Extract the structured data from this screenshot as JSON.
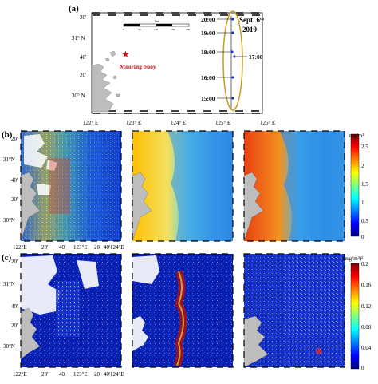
{
  "panel_a": {
    "label": "(a)",
    "lat_labels": [
      "20'",
      "31° N",
      "40'",
      "20'",
      "30° N"
    ],
    "lon_labels": [
      "122° E",
      "123° E",
      "124° E",
      "125° E",
      "126° E"
    ],
    "scale_label": "km",
    "scale_ticks": [
      "0",
      "50",
      "100",
      "150",
      "200"
    ],
    "buoy_label": "Mooring buoy",
    "date_line1": "Sept. 6",
    "date_sup": "th",
    "date_line2": "2019",
    "times_left": [
      "20:00",
      "19:00",
      "18:00",
      "16:00",
      "15:00"
    ],
    "time_right": "17:00"
  },
  "panel_b": {
    "label": "(b)",
    "lat_labels": [
      "20'",
      "31°N",
      "40'",
      "20'",
      "30°N"
    ],
    "lon_labels": [
      "122°E",
      "20'",
      "40'",
      "123°E",
      "20'",
      "40'",
      "124°E"
    ],
    "colorbar_unit": "mg/m³",
    "colorbar_ticks": [
      "2.5",
      "2",
      "1.5",
      "1",
      "0.5",
      "0"
    ]
  },
  "panel_c": {
    "label": "(c)",
    "lat_labels": [
      "20'",
      "31°N",
      "40'",
      "20'",
      "30°N"
    ],
    "lon_labels": [
      "122°E",
      "20'",
      "40'",
      "123°E",
      "20'",
      "40'",
      "124°E"
    ],
    "colorbar_unit": "(mg/m³)²",
    "colorbar_ticks": [
      "0.2",
      "0.16",
      "0.12",
      "0.08",
      "0.04",
      "0"
    ]
  },
  "colors": {
    "jet_low": "#00007f",
    "jet_mid": "#7fff7f",
    "jet_high": "#7f0000",
    "ellipse": "#c9a227",
    "buoy": "#c0141c",
    "land": "#bdbdbd"
  }
}
